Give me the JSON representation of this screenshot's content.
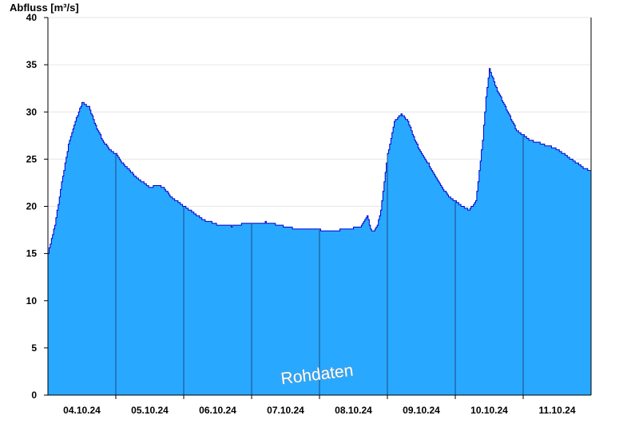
{
  "chart_data": {
    "type": "area",
    "ylabel": "Abfluss [m³/s]",
    "ylim": [
      0,
      40
    ],
    "yticks": [
      0,
      5,
      10,
      15,
      20,
      25,
      30,
      35,
      40
    ],
    "xlim_days": [
      "03.10.24 12:00",
      "11.10.24 12:00"
    ],
    "day_separators": [
      "04.10.24 12:00",
      "05.10.24 12:00",
      "06.10.24 12:00",
      "07.10.24 12:00",
      "08.10.24 12:00",
      "09.10.24 12:00",
      "10.10.24 12:00",
      "11.10.24 12:00"
    ],
    "xtick_labels": [
      "04.10.24",
      "05.10.24",
      "06.10.24",
      "07.10.24",
      "08.10.24",
      "09.10.24",
      "10.10.24",
      "11.10.24"
    ],
    "watermark": "Rohdaten",
    "grid": true,
    "colors": {
      "fill": "#29a8ff",
      "line": "#0000cc",
      "grid": "#e6e6e6",
      "separator": "#1a4a80"
    },
    "series": [
      {
        "values_x_days": [
          0.0,
          0.1,
          0.2,
          0.3,
          0.4,
          0.5,
          0.6,
          0.7,
          0.8,
          0.9,
          1.0,
          1.1,
          1.2,
          1.3,
          1.4,
          1.5,
          1.6,
          1.7,
          1.8,
          1.9,
          2.0,
          2.1,
          2.2,
          2.3,
          2.4,
          2.5,
          2.6,
          2.7,
          2.8,
          2.9,
          3.0,
          3.2,
          3.4,
          3.6,
          3.8,
          4.0,
          4.2,
          4.4,
          4.6,
          4.7,
          4.75,
          4.8,
          4.85,
          4.9,
          5.0,
          5.1,
          5.2,
          5.3,
          5.4,
          5.5,
          5.6,
          5.7,
          5.8,
          5.9,
          6.0,
          6.1,
          6.2,
          6.3,
          6.4,
          6.45,
          6.5,
          6.6,
          6.7,
          6.8,
          6.9,
          7.0,
          7.1,
          7.2,
          7.3,
          7.4,
          7.5,
          7.6,
          7.7,
          7.8,
          7.9,
          8.0
        ],
        "values": [
          15.0,
          18.0,
          22.5,
          26.5,
          29.0,
          31.0,
          30.5,
          28.5,
          27.0,
          26.0,
          25.5,
          24.5,
          23.8,
          23.0,
          22.5,
          22.0,
          22.2,
          22.0,
          21.0,
          20.5,
          20.0,
          19.5,
          19.0,
          18.5,
          18.3,
          18.0,
          18.0,
          17.9,
          18.0,
          18.2,
          18.2,
          18.3,
          18.0,
          17.7,
          17.6,
          17.5,
          17.4,
          17.6,
          17.8,
          19.0,
          17.5,
          17.3,
          18.0,
          19.5,
          25.5,
          29.0,
          29.8,
          29.0,
          27.0,
          25.5,
          24.5,
          23.2,
          22.0,
          21.0,
          20.5,
          20.0,
          19.6,
          20.5,
          27.0,
          31.5,
          34.5,
          32.5,
          31.0,
          29.5,
          28.0,
          27.5,
          27.0,
          26.8,
          26.5,
          26.3,
          26.0,
          25.5,
          25.0,
          24.5,
          24.0,
          23.8
        ]
      }
    ]
  }
}
